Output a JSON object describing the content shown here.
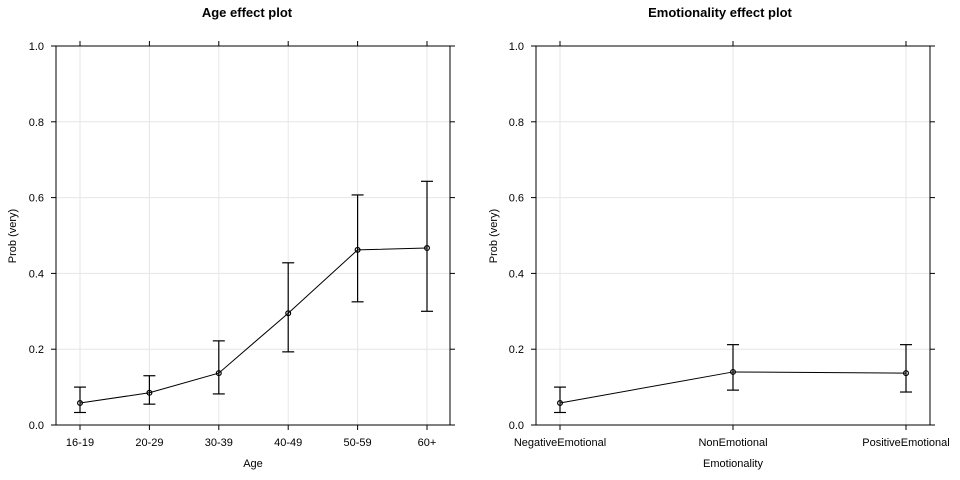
{
  "chart_data": [
    {
      "type": "line",
      "title": "Age effect plot",
      "xlabel": "Age",
      "ylabel": "Prob (very)",
      "ylim": [
        0,
        1
      ],
      "yticks": [
        0.0,
        0.2,
        0.4,
        0.6,
        0.8,
        1.0
      ],
      "ytick_labels": [
        "0.0",
        "0.2",
        "0.4",
        "0.6",
        "0.8",
        "1.0"
      ],
      "grid": true,
      "categories": [
        "16-19",
        "20-29",
        "30-39",
        "40-49",
        "50-59",
        "60+"
      ],
      "values": [
        0.058,
        0.085,
        0.137,
        0.295,
        0.462,
        0.467
      ],
      "lower": [
        0.033,
        0.055,
        0.082,
        0.193,
        0.325,
        0.3
      ],
      "upper": [
        0.1,
        0.13,
        0.222,
        0.428,
        0.607,
        0.643
      ]
    },
    {
      "type": "line",
      "title": "Emotionality effect plot",
      "xlabel": "Emotionality",
      "ylabel": "Prob (very)",
      "ylim": [
        0,
        1
      ],
      "yticks": [
        0.0,
        0.2,
        0.4,
        0.6,
        0.8,
        1.0
      ],
      "ytick_labels": [
        "0.0",
        "0.2",
        "0.4",
        "0.6",
        "0.8",
        "1.0"
      ],
      "grid": true,
      "categories": [
        "NegativeEmotional",
        "NonEmotional",
        "PositiveEmotional"
      ],
      "values": [
        0.058,
        0.14,
        0.137
      ],
      "lower": [
        0.033,
        0.092,
        0.087
      ],
      "upper": [
        0.1,
        0.212,
        0.212
      ]
    }
  ]
}
